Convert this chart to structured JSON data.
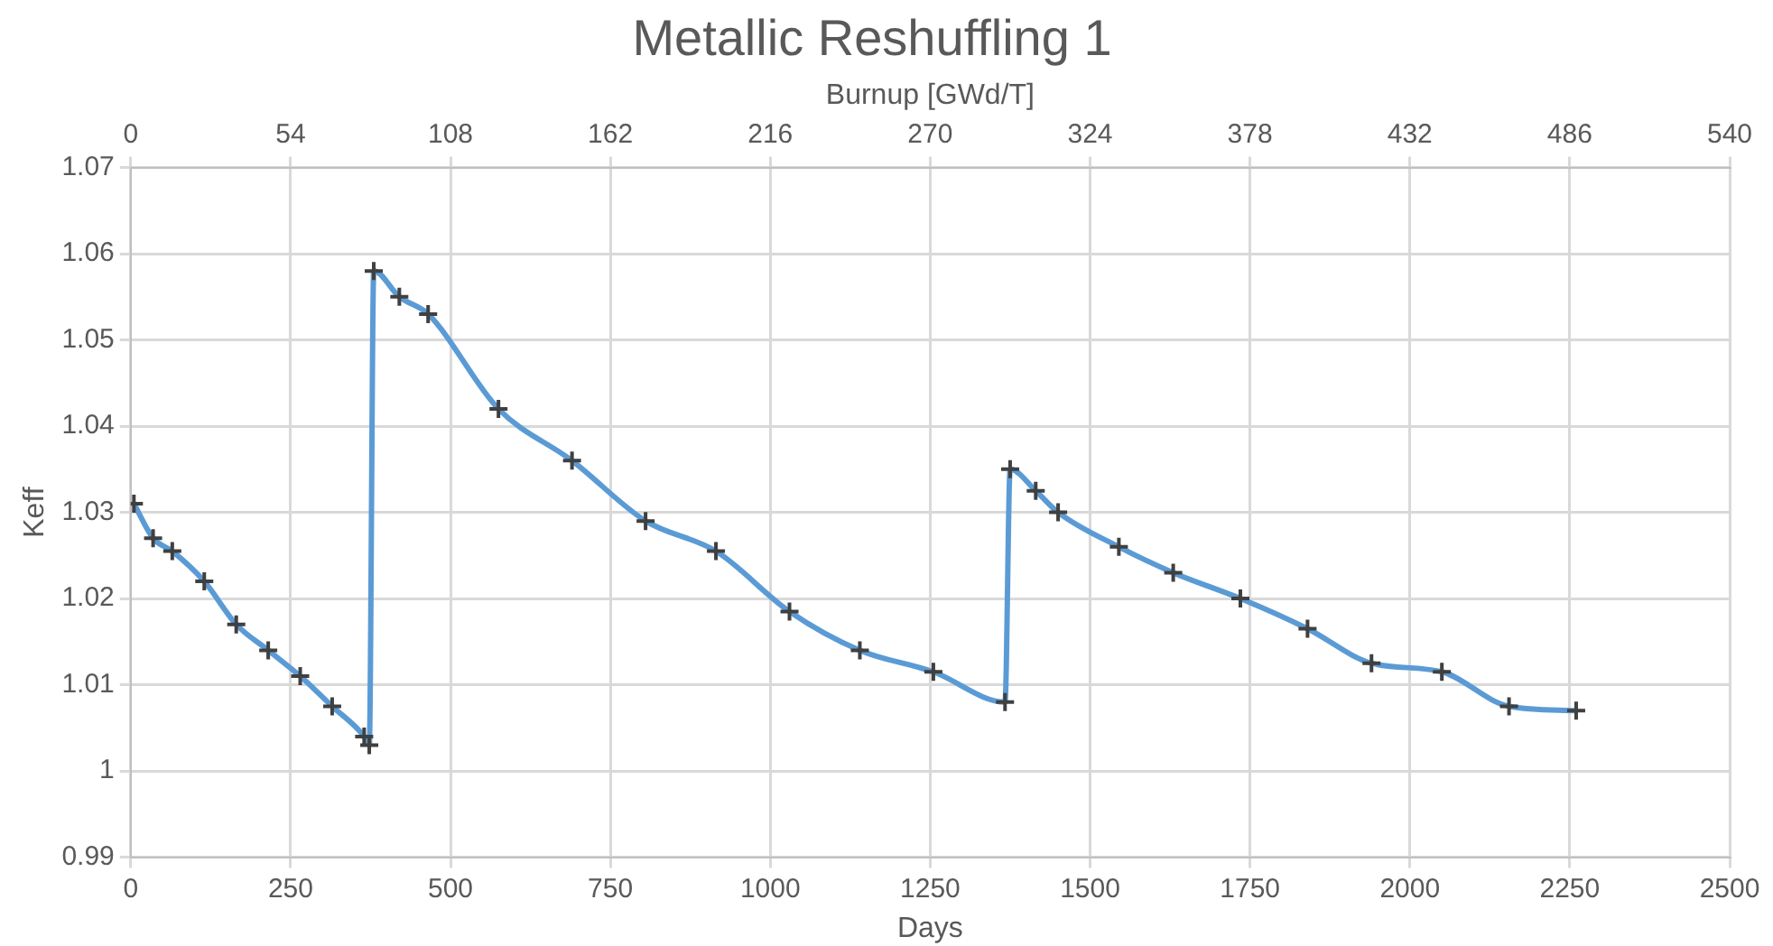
{
  "chart_data": {
    "type": "line",
    "title": "Metallic Reshuffling 1",
    "xlabel": "Days",
    "ylabel": "Keff",
    "x2label": "Burnup [GWd/T]",
    "x": [
      5,
      35,
      65,
      115,
      165,
      215,
      265,
      315,
      365,
      373,
      380,
      420,
      465,
      575,
      690,
      805,
      915,
      1030,
      1140,
      1255,
      1367,
      1375,
      1415,
      1450,
      1545,
      1630,
      1735,
      1840,
      1940,
      2050,
      2155,
      2260
    ],
    "series": [
      {
        "color": "#5b9bd5",
        "values": [
          1.031,
          1.027,
          1.0255,
          1.022,
          1.017,
          1.014,
          1.011,
          1.0075,
          1.004,
          1.003,
          1.058,
          1.055,
          1.053,
          1.042,
          1.036,
          1.029,
          1.0255,
          1.0185,
          1.014,
          1.0115,
          1.008,
          1.035,
          1.0325,
          1.03,
          1.026,
          1.023,
          1.02,
          1.0165,
          1.0125,
          1.0115,
          1.0075,
          1.007
        ]
      }
    ],
    "xlim": [
      0,
      2500
    ],
    "xticks": [
      0,
      250,
      500,
      750,
      1000,
      1250,
      1500,
      1750,
      2000,
      2250,
      2500
    ],
    "x2lim": [
      0,
      540
    ],
    "x2ticks": [
      0,
      54,
      108,
      162,
      216,
      270,
      324,
      378,
      432,
      486,
      540
    ],
    "ylim": [
      0.99,
      1.07
    ],
    "yticks": [
      0.99,
      1,
      1.01,
      1.02,
      1.03,
      1.04,
      1.05,
      1.06,
      1.07
    ],
    "grid": true,
    "legend": false,
    "marker": "cross",
    "line_style": "solid"
  }
}
